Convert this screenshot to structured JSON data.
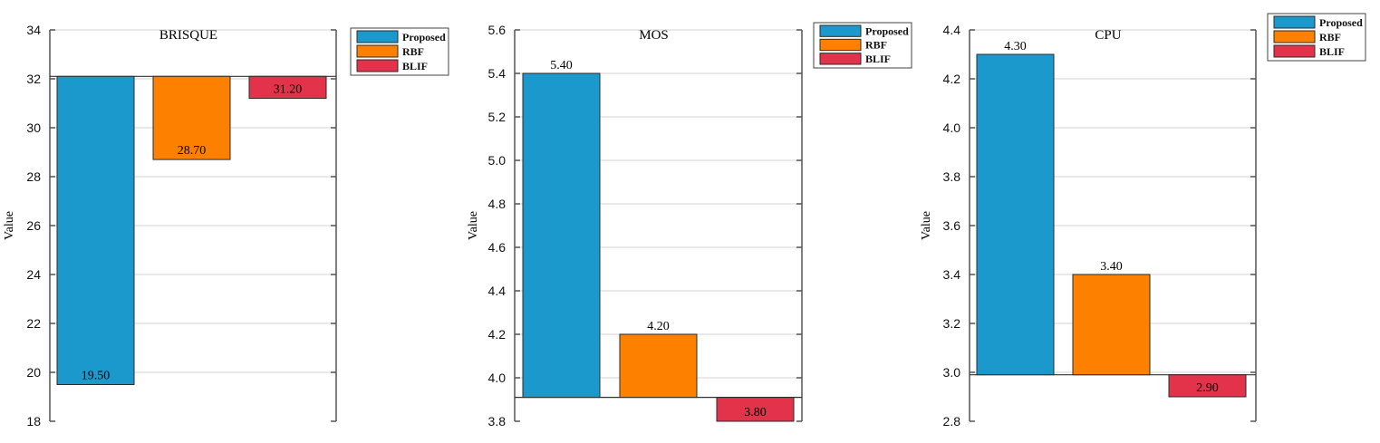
{
  "chart_data": [
    {
      "type": "bar",
      "title": "BRISQUE",
      "ylabel": "Value",
      "ylim": [
        18,
        34
      ],
      "yticks": [
        "18",
        "20",
        "22",
        "24",
        "26",
        "28",
        "30",
        "32",
        "34"
      ],
      "baseline": 32.1,
      "grid": true,
      "legend_position": "top-right",
      "categories": [
        "Proposed",
        "RBF",
        "BLIF"
      ],
      "values": [
        19.5,
        28.7,
        31.2
      ],
      "value_labels": [
        "19.50",
        "28.70",
        "31.20"
      ],
      "colors": [
        "#1b98cc",
        "#fd8001",
        "#e2334b"
      ]
    },
    {
      "type": "bar",
      "title": "MOS",
      "ylabel": "Value",
      "ylim": [
        3.8,
        5.6
      ],
      "yticks": [
        "3.8",
        "4.0",
        "4.2",
        "4.4",
        "4.6",
        "4.8",
        "5.0",
        "5.2",
        "5.4",
        "5.6"
      ],
      "baseline": 3.91,
      "grid": true,
      "legend_position": "top-right",
      "categories": [
        "Proposed",
        "RBF",
        "BLIF"
      ],
      "values": [
        5.4,
        4.2,
        3.8
      ],
      "value_labels": [
        "5.40",
        "4.20",
        "3.80"
      ],
      "colors": [
        "#1b98cc",
        "#fd8001",
        "#e2334b"
      ]
    },
    {
      "type": "bar",
      "title": "CPU",
      "ylabel": "Value",
      "ylim": [
        2.8,
        4.4
      ],
      "yticks": [
        "2.8",
        "3.0",
        "3.2",
        "3.4",
        "3.6",
        "3.8",
        "4.0",
        "4.2",
        "4.4"
      ],
      "baseline": 2.99,
      "grid": true,
      "legend_position": "top-right",
      "categories": [
        "Proposed",
        "RBF",
        "BLIF"
      ],
      "values": [
        4.3,
        3.4,
        2.9
      ],
      "value_labels": [
        "4.30",
        "3.40",
        "2.90"
      ],
      "colors": [
        "#1b98cc",
        "#fd8001",
        "#e2334b"
      ]
    }
  ]
}
